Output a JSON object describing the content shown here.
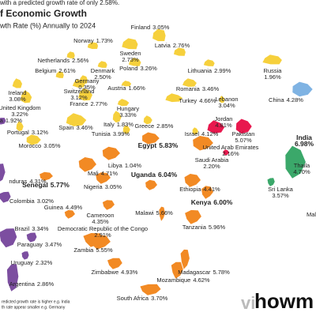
{
  "header": {
    "subtitle_top": "with a predicted growth rate of only 2.58%.",
    "title": "f Economic Growth",
    "subtitle": "wth Rate (%) Annually to 2024"
  },
  "countries": [
    {
      "name": "Norway",
      "rate": "1.73%"
    },
    {
      "name": "Finland",
      "rate": "3.05%"
    },
    {
      "name": "Latvia",
      "rate": "2.76%"
    },
    {
      "name": "Netherlands",
      "rate": "2.56%"
    },
    {
      "name": "Sweden",
      "rate": "2.73%"
    },
    {
      "name": "Belgium",
      "rate": "2.61%"
    },
    {
      "name": "Denmark",
      "rate": "2.50%"
    },
    {
      "name": "Germany",
      "rate": "0.35%"
    },
    {
      "name": "Poland",
      "rate": "3.26%"
    },
    {
      "name": "Lithuania",
      "rate": "2.99%"
    },
    {
      "name": "Russia",
      "rate": "1.96%"
    },
    {
      "name": "Ireland",
      "rate": "3.08%"
    },
    {
      "name": "Austria",
      "rate": "1.66%"
    },
    {
      "name": "Switzerland",
      "rate": "3.12%"
    },
    {
      "name": "Romania",
      "rate": "3.46%"
    },
    {
      "name": "United Kingdom",
      "rate": "3.22%"
    },
    {
      "name": "France",
      "rate": "2.77%"
    },
    {
      "name": "Lebanon",
      "rate": "3.04%"
    },
    {
      "name": "Turkey",
      "rate": "4.66%"
    },
    {
      "name": "Hungary",
      "rate": "3.33%"
    },
    {
      "name": "Jordan",
      "rate": "4.81%"
    },
    {
      "name": "Portugal",
      "rate": "3.12%"
    },
    {
      "name": "Spain",
      "rate": "3.46%"
    },
    {
      "name": "Italy",
      "rate": "1.83%"
    },
    {
      "name": "Greece",
      "rate": "2.85%"
    },
    {
      "name": "Tunisia",
      "rate": "3.99%"
    },
    {
      "name": "Israel",
      "rate": "4.12%"
    },
    {
      "name": "Pakistan",
      "rate": "5.07%"
    },
    {
      "name": "China",
      "rate": "4.28%"
    },
    {
      "name": "Morocco",
      "rate": "3.05%"
    },
    {
      "name": "Egypt",
      "rate": "5.83%"
    },
    {
      "name": "India",
      "rate": "6.98%"
    },
    {
      "name": "United Arab Emirates",
      "rate": "2.16%"
    },
    {
      "name": "Saudi Arabia",
      "rate": "2.20%"
    },
    {
      "name": "Libya",
      "rate": "1.04%"
    },
    {
      "name": "Mali",
      "rate": "4.71%"
    },
    {
      "name": "Uganda",
      "rate": "6.04%"
    },
    {
      "name": "Ethiopia",
      "rate": "4.41%"
    },
    {
      "name": "Senegal",
      "rate": "5.77%"
    },
    {
      "name": "Nigeria",
      "rate": "3.05%"
    },
    {
      "name": "Kenya",
      "rate": "6.00%"
    },
    {
      "name": "Guinea",
      "rate": "4.49%"
    },
    {
      "name": "Malawi",
      "rate": "5.66%"
    },
    {
      "name": "Cameroon",
      "rate": "4.35%"
    },
    {
      "name": "Democratic Republic of the Congo",
      "rate": "2.91%"
    },
    {
      "name": "Tanzania",
      "rate": "5.96%"
    },
    {
      "name": "Zambia",
      "rate": "5.55%"
    },
    {
      "name": "Madagascar",
      "rate": "5.78%"
    },
    {
      "name": "Zimbabwe",
      "rate": "4.93%"
    },
    {
      "name": "Mozambique",
      "rate": "4.62%"
    },
    {
      "name": "South Africa",
      "rate": "3.70%"
    },
    {
      "name": "Sri Lanka",
      "rate": "3.57%"
    },
    {
      "name": "Thaila",
      "rate": "4.70%"
    },
    {
      "name": "nduras",
      "rate": "4.31%"
    },
    {
      "name": "Colombia",
      "rate": "3.02%"
    },
    {
      "name": "Brazil",
      "rate": "3.34%"
    },
    {
      "name": "Paraguay",
      "rate": "3.47%"
    },
    {
      "name": "Uruguay",
      "rate": "2.32%"
    },
    {
      "name": "Argentina",
      "rate": "2.86%"
    },
    {
      "name": "ca",
      "rate": "1.92%"
    }
  ],
  "stray_labels": [
    "Mala"
  ],
  "footer": {
    "note_1": "redicted growth rate is higher e.g. India",
    "note_2": "th rate appear smaller e.g. Germany",
    "logo_a": "vi",
    "logo_b": "howm"
  }
}
